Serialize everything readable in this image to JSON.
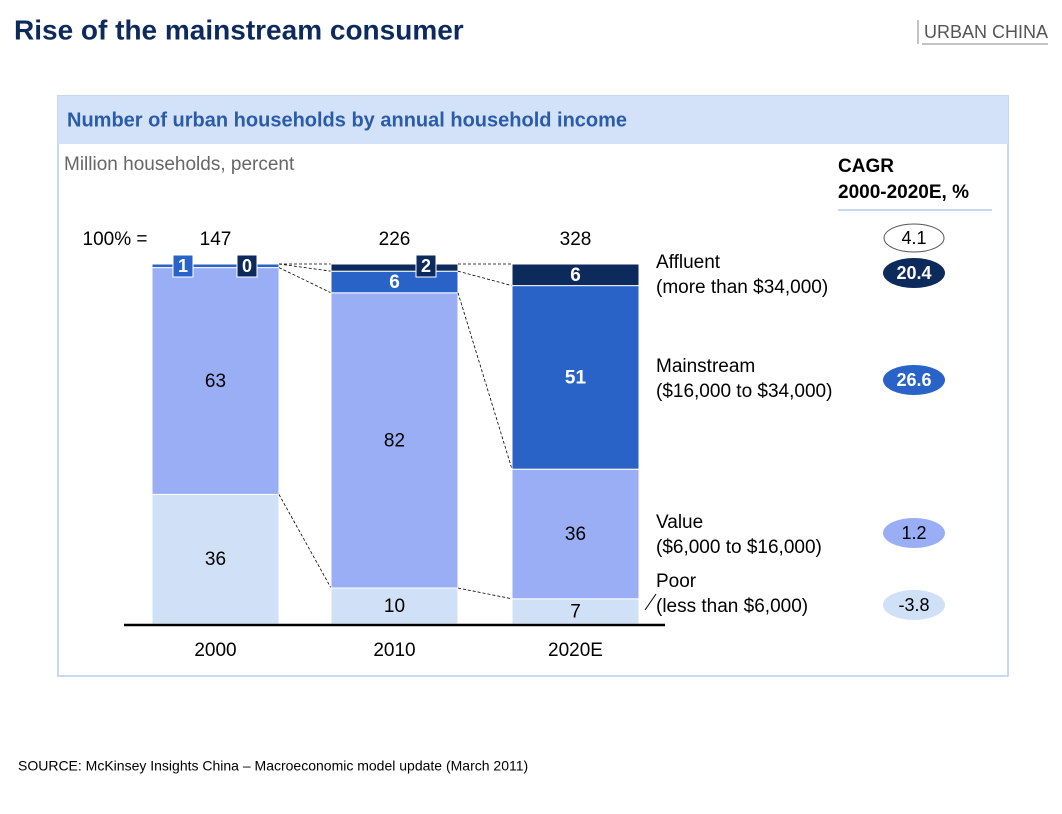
{
  "page_title": "Rise of the mainstream consumer",
  "section_tag": "URBAN CHINA",
  "source": "SOURCE: McKinsey Insights China – Macroeconomic model update (March 2011)",
  "chart_data": {
    "type": "stacked_bar_100",
    "title": "Number of urban households by annual household income",
    "subtitle": "Million households, percent",
    "categories": [
      "2000",
      "2010",
      "2020E"
    ],
    "totals_label": "100% =",
    "totals": [
      147,
      226,
      328
    ],
    "ylim": [
      0,
      100
    ],
    "cagr_title": [
      "CAGR",
      "2000-2020E, %"
    ],
    "total_cagr": 4.1,
    "series": [
      {
        "name": "Poor",
        "range": "(less than $6,000)",
        "color": "#cfe0f7",
        "values": [
          36,
          10,
          7
        ],
        "cagr": -3.8
      },
      {
        "name": "Value",
        "range": "($6,000 to $16,000)",
        "color": "#99aef5",
        "values": [
          63,
          82,
          36
        ],
        "cagr": 1.2
      },
      {
        "name": "Mainstream",
        "range": "($16,000 to $34,000)",
        "color": "#2a63c8",
        "values": [
          1,
          6,
          51
        ],
        "cagr": 26.6
      },
      {
        "name": "Affluent",
        "range": "(more than $34,000)",
        "color": "#0d2a5c",
        "values": [
          0,
          2,
          6
        ],
        "cagr": 20.4
      }
    ]
  }
}
